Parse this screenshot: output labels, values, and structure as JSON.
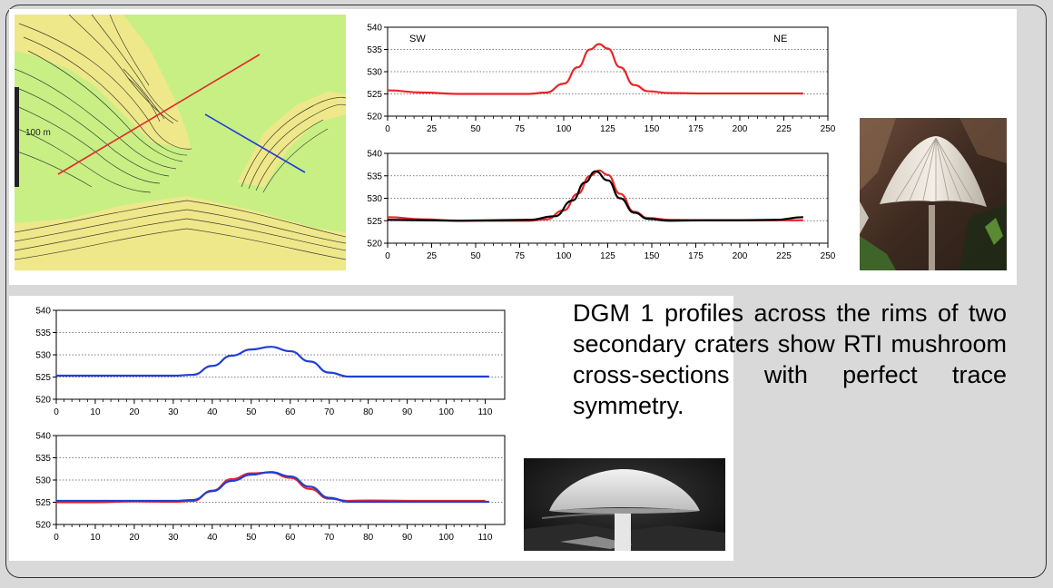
{
  "colors": {
    "red": "#e8262a",
    "black": "#000000",
    "blue": "#1f3fd4",
    "map_green": "#c8ef84",
    "map_yellow": "#efe88a"
  },
  "map": {
    "scale_label": "100 m"
  },
  "caption": {
    "text": "DGM 1 profiles across the rims of two secondary craters show RTI mushroom cross-sections with perfect trace symmetry."
  },
  "images": {
    "mushroom_top": "mushroom-photo",
    "mushroom_bottom": "mushroom-photo"
  },
  "chart_data": [
    {
      "id": "sw-ne-profile",
      "type": "line",
      "xlim": [
        0,
        250
      ],
      "ylim": [
        520,
        540
      ],
      "xticks": [
        0,
        25,
        50,
        75,
        100,
        125,
        150,
        175,
        200,
        225,
        250
      ],
      "yticks": [
        520,
        525,
        530,
        535,
        540
      ],
      "grid": "horizontal dotted",
      "annotations": [
        "SW",
        "NE"
      ],
      "series": [
        {
          "color": "red",
          "x": [
            0,
            20,
            40,
            60,
            80,
            90,
            100,
            108,
            115,
            120,
            125,
            132,
            140,
            148,
            160,
            180,
            200,
            220,
            236
          ],
          "y": [
            525.8,
            525.3,
            525.0,
            525.0,
            525.0,
            525.3,
            527.3,
            531.0,
            535.0,
            536.2,
            535.2,
            531.0,
            527.0,
            525.6,
            525.2,
            525.1,
            525.1,
            525.1,
            525.1
          ]
        }
      ]
    },
    {
      "id": "sw-ne-profile-overlay",
      "type": "line",
      "xlim": [
        0,
        250
      ],
      "ylim": [
        520,
        540
      ],
      "xticks": [
        0,
        25,
        50,
        75,
        100,
        125,
        150,
        175,
        200,
        225,
        250
      ],
      "yticks": [
        520,
        525,
        530,
        535,
        540
      ],
      "grid": "horizontal dotted",
      "series": [
        {
          "color": "red",
          "x": [
            0,
            20,
            40,
            60,
            80,
            90,
            100,
            108,
            115,
            120,
            125,
            132,
            140,
            148,
            160,
            180,
            200,
            220,
            236
          ],
          "y": [
            525.8,
            525.3,
            525.0,
            525.0,
            525.0,
            525.3,
            527.3,
            531.0,
            535.0,
            536.2,
            535.2,
            531.0,
            527.0,
            525.6,
            525.2,
            525.1,
            525.1,
            525.1,
            525.1
          ]
        },
        {
          "color": "black",
          "x": [
            0,
            20,
            40,
            60,
            80,
            95,
            105,
            112,
            118,
            125,
            132,
            140,
            148,
            160,
            180,
            200,
            220,
            236
          ],
          "y": [
            525.2,
            525.1,
            525.0,
            525.1,
            525.2,
            526.0,
            529.5,
            533.5,
            536.0,
            534.0,
            530.0,
            526.8,
            525.4,
            525.0,
            525.1,
            525.1,
            525.2,
            525.8
          ]
        }
      ]
    },
    {
      "id": "second-crater-profile",
      "type": "line",
      "xlim": [
        0,
        115
      ],
      "ylim": [
        520,
        540
      ],
      "xticks": [
        0,
        10,
        20,
        30,
        40,
        50,
        60,
        70,
        80,
        90,
        100,
        110
      ],
      "yticks": [
        520,
        525,
        530,
        535,
        540
      ],
      "grid": "horizontal dotted",
      "series": [
        {
          "color": "blue",
          "x": [
            0,
            10,
            20,
            30,
            35,
            40,
            45,
            50,
            55,
            60,
            65,
            70,
            75,
            80,
            90,
            100,
            111
          ],
          "y": [
            525.3,
            525.3,
            525.3,
            525.3,
            525.5,
            527.5,
            529.8,
            531.2,
            531.8,
            530.8,
            528.5,
            526.0,
            525.1,
            525.1,
            525.1,
            525.1,
            525.1
          ]
        }
      ]
    },
    {
      "id": "second-crater-profile-overlay",
      "type": "line",
      "xlim": [
        0,
        115
      ],
      "ylim": [
        520,
        540
      ],
      "xticks": [
        0,
        10,
        20,
        30,
        40,
        50,
        60,
        70,
        80,
        90,
        100,
        110
      ],
      "yticks": [
        520,
        525,
        530,
        535,
        540
      ],
      "grid": "horizontal dotted",
      "series": [
        {
          "color": "red",
          "x": [
            0,
            10,
            20,
            30,
            35,
            40,
            45,
            50,
            55,
            60,
            65,
            70,
            75,
            80,
            90,
            100,
            110
          ],
          "y": [
            525.0,
            525.0,
            525.2,
            525.1,
            525.3,
            527.6,
            530.2,
            531.5,
            531.7,
            530.5,
            528.0,
            525.8,
            525.3,
            525.4,
            525.3,
            525.3,
            525.3
          ]
        },
        {
          "color": "blue",
          "x": [
            0,
            10,
            20,
            30,
            35,
            40,
            45,
            50,
            55,
            60,
            65,
            70,
            75,
            80,
            90,
            100,
            111
          ],
          "y": [
            525.3,
            525.3,
            525.3,
            525.3,
            525.5,
            527.5,
            529.8,
            531.2,
            531.8,
            530.8,
            528.5,
            526.0,
            525.1,
            525.1,
            525.1,
            525.1,
            525.1
          ]
        }
      ]
    }
  ]
}
